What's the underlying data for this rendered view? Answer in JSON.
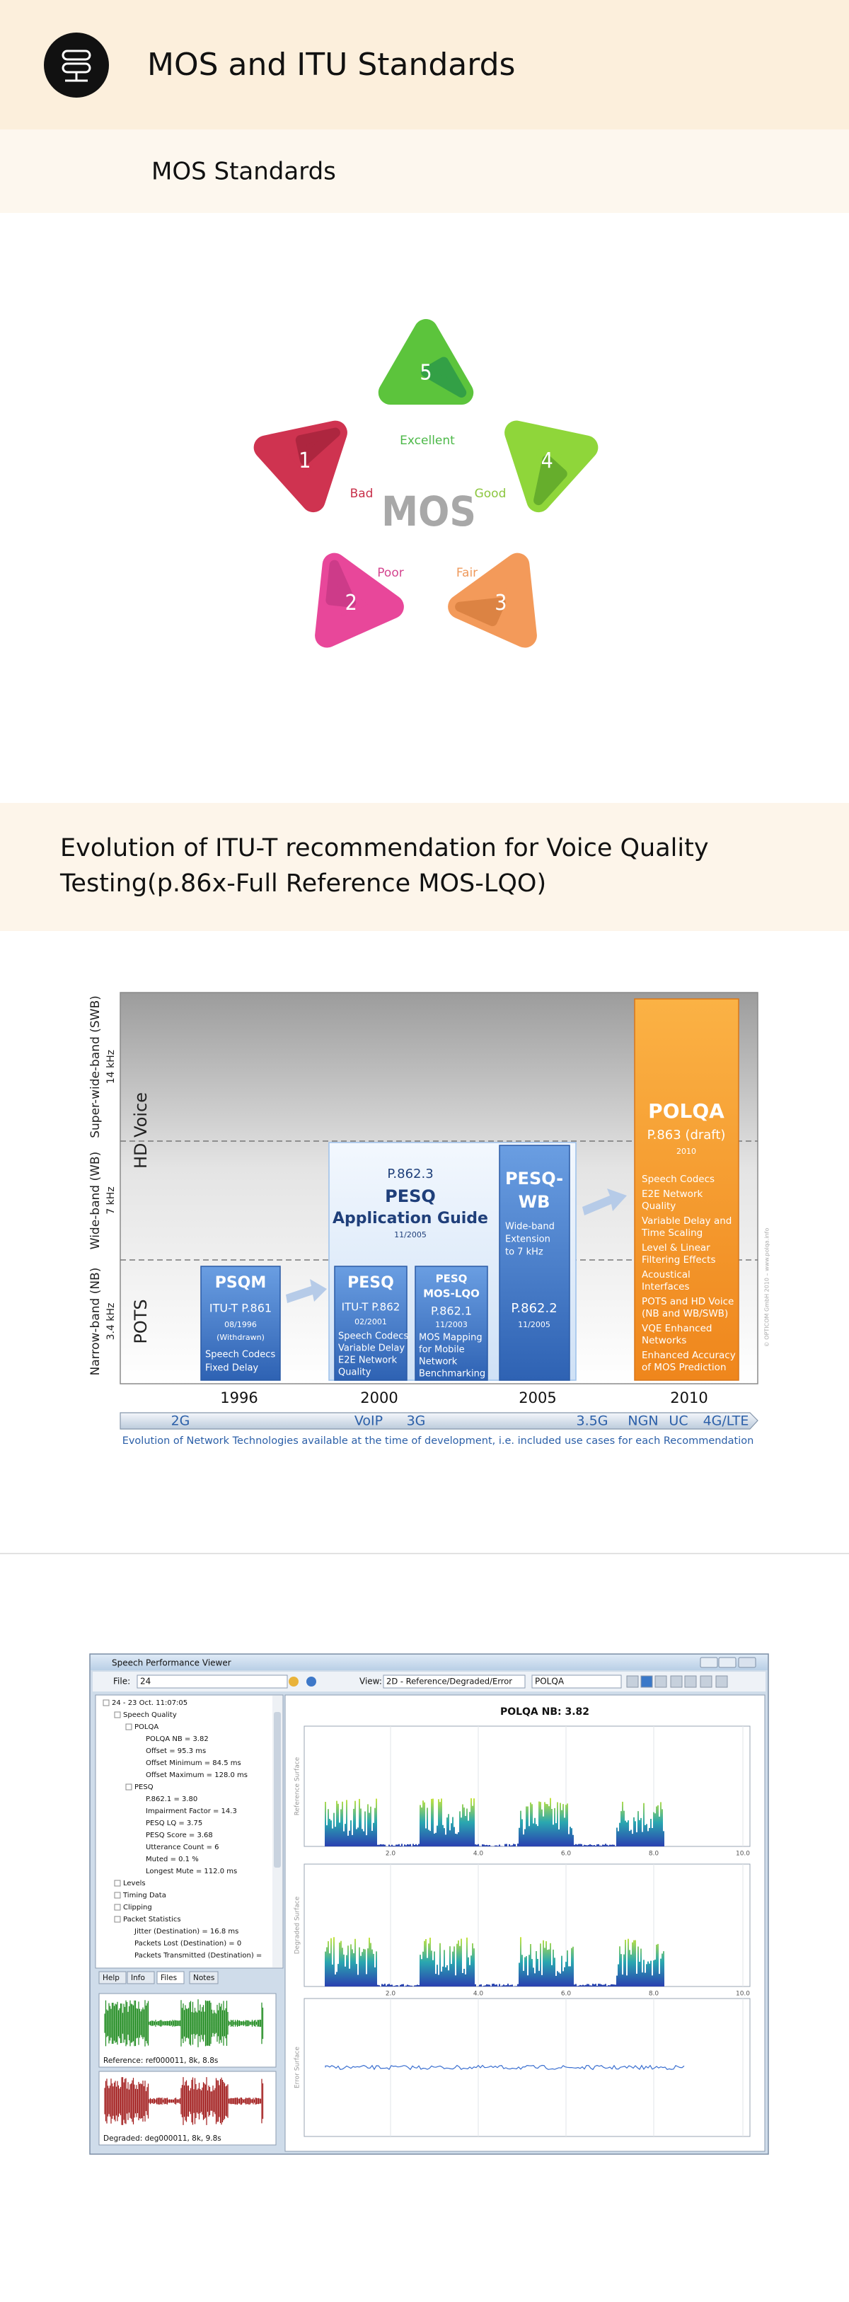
{
  "header": {
    "title": "MOS and ITU Standards"
  },
  "subheader": {
    "title": "MOS Standards"
  },
  "mos_diagram": {
    "center_label": "MOS",
    "levels": [
      {
        "number": 1,
        "label": "Bad"
      },
      {
        "number": 2,
        "label": "Poor"
      },
      {
        "number": 3,
        "label": "Fair"
      },
      {
        "number": 4,
        "label": "Good"
      },
      {
        "number": 5,
        "label": "Excellent"
      }
    ]
  },
  "section": {
    "title_lines": [
      "Evolution of ITU-T recommendation for Voice Quality",
      "Testing(p.86x-Full Reference MOS-LQO)"
    ]
  },
  "itu_diagram": {
    "bands": [
      {
        "label": "Super-wide-band (SWB)",
        "freq": "14 kHz"
      },
      {
        "label": "Wide-band (WB)",
        "freq": "7 kHz"
      },
      {
        "label": "Narrow-band (NB)",
        "freq": "3.4 kHz"
      }
    ],
    "groups": [
      "HD Voice",
      "POTS"
    ],
    "psqm": {
      "title": "PSQM",
      "standard": "ITU-T P.861",
      "date": "08/1996",
      "status": "(Withdrawn)",
      "notes": [
        "Speech Codecs",
        "Fixed Delay"
      ]
    },
    "app_guide": {
      "standard": "P.862.3",
      "title": "PESQ",
      "subtitle": "Application Guide",
      "date": "11/2005"
    },
    "pesq": {
      "title": "PESQ",
      "standard": "ITU-T P.862",
      "date": "02/2001",
      "notes": [
        "Speech Codecs",
        "Variable Delay",
        "E2E Network",
        "Quality"
      ]
    },
    "pesq_lqo": {
      "title": [
        "PESQ",
        "MOS-LQO"
      ],
      "standard": "P.862.1",
      "date": "11/2003",
      "notes": [
        "MOS Mapping",
        "for Mobile",
        "Network",
        "Benchmarking"
      ]
    },
    "pesq_wb": {
      "title": [
        "PESQ-",
        "WB"
      ],
      "notes": [
        "Wide-band",
        "Extension",
        "to 7 kHz"
      ],
      "standard": "P.862.2",
      "date": "11/2005"
    },
    "polqa": {
      "title": "POLQA",
      "standard": "P.863 (draft)",
      "date": "2010",
      "features": [
        [
          "Speech Codecs"
        ],
        [
          "E2E Network",
          "Quality"
        ],
        [
          "Variable Delay and",
          "Time Scaling"
        ],
        [
          "Level & Linear",
          "Filtering Effects"
        ],
        [
          "Acoustical",
          "Interfaces"
        ],
        [
          "POTS and HD Voice",
          "(NB and WB/SWB)"
        ],
        [
          "VQE Enhanced",
          "Networks"
        ],
        [
          "Enhanced Accuracy",
          "of MOS Prediction"
        ]
      ]
    },
    "copyright": "© OPTICOM GmbH 2010 – www.polqa.info",
    "years": [
      1996,
      2000,
      2005,
      2010
    ],
    "networks": [
      "2G",
      "VoIP",
      "3G",
      "3.5G",
      "NGN",
      "UC",
      "4G/LTE"
    ],
    "caption": "Evolution of Network Technologies available at the time of development, i.e. included use cases for each Recommendation"
  },
  "software": {
    "window_title": "Speech Performance Viewer",
    "file_label": "File:",
    "file_value": "24",
    "view_label": "View:",
    "view_value": "2D - Reference/Degraded/Error",
    "measure_value": "POLQA",
    "tree": [
      "24 - 23 Oct. 11:07:05",
      "Speech Quality",
      "POLQA",
      "POLQA NB = 3.82",
      "Offset = 95.3 ms",
      "Offset Minimum = 84.5 ms",
      "Offset Maximum = 128.0 ms",
      "PESQ",
      "P.862.1 = 3.80",
      "Impairment Factor = 14.3",
      "PESQ LQ = 3.75",
      "PESQ Score = 3.68",
      "Utterance Count = 6",
      "Muted = 0.1 %",
      "Longest Mute = 112.0 ms",
      "Levels",
      "Timing Data",
      "Clipping",
      "Packet Statistics",
      "Jitter (Destination) = 16.8 ms",
      "Packets Lost (Destination) = 0",
      "Packets Transmitted (Destination) ="
    ],
    "tabs": [
      "Help",
      "Info",
      "Files",
      "Notes"
    ],
    "reference_file": "Reference: ref000011, 8k, 8.8s",
    "degraded_file": "Degraded: deg000011, 8k, 9.8s",
    "chart_title": "POLQA NB: 3.82",
    "surfaces": [
      "Reference Surface",
      "Degraded Surface",
      "Error Surface"
    ],
    "x_labels": [
      "2.0",
      "4.0",
      "6.0",
      "8.0",
      "10.0"
    ]
  }
}
